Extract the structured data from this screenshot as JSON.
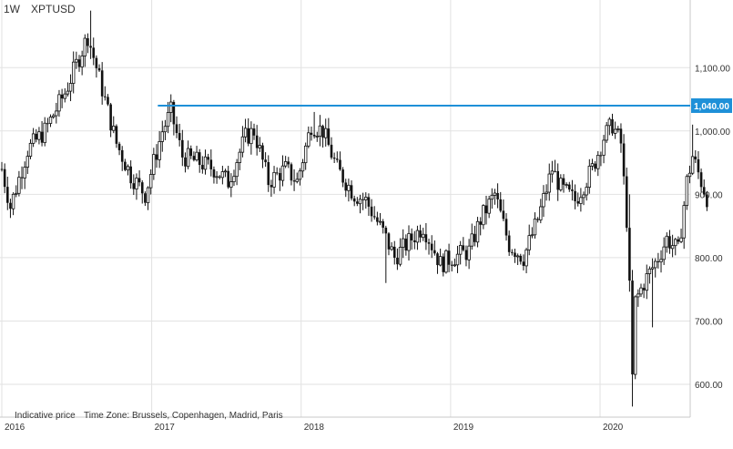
{
  "header": {
    "timeframe": "1W",
    "symbol": "XPTUSD"
  },
  "footer": {
    "indicative": "Indicative price",
    "timezone": "Time Zone: Brussels, Copenhagen, Madrid, Paris"
  },
  "colors": {
    "candle": "#111111",
    "line": "#1e90d8",
    "grid": "#e2e2e2",
    "axis_text": "#333333",
    "price_label_bg": "#1e90d8",
    "price_label_text": "#ffffff"
  },
  "chart_data": {
    "type": "candlestick",
    "title": "XPTUSD",
    "interval": "1W",
    "x_range": [
      "2016-01",
      "2020-09"
    ],
    "y_range": [
      550,
      1190
    ],
    "y_ticks": [
      {
        "value": 600,
        "label": "600.00"
      },
      {
        "value": 700,
        "label": "700.00"
      },
      {
        "value": 800,
        "label": "800.00"
      },
      {
        "value": 900,
        "label": "900.00"
      },
      {
        "value": 1000,
        "label": "1,000.00"
      },
      {
        "value": 1100,
        "label": "1,100.00"
      }
    ],
    "x_ticks": [
      {
        "date": "2016-01-01",
        "label": "2016"
      },
      {
        "date": "2017-01-01",
        "label": "2017"
      },
      {
        "date": "2018-01-01",
        "label": "2018"
      },
      {
        "date": "2019-01-01",
        "label": "2019"
      },
      {
        "date": "2020-01-01",
        "label": "2020"
      }
    ],
    "grid": true,
    "price_label": {
      "value": 1040,
      "label": "1,040.00"
    },
    "horizontal_line": {
      "value": 1040,
      "from": "2017-01-16",
      "to": "2020-09-18"
    },
    "close_path": [
      [
        "2016-01-01",
        940
      ],
      [
        "2016-01-22",
        880
      ],
      [
        "2016-03-04",
        970
      ],
      [
        "2016-04-15",
        1000
      ],
      [
        "2016-06-03",
        1060
      ],
      [
        "2016-07-29",
        1150
      ],
      [
        "2016-08-19",
        1100
      ],
      [
        "2016-10-07",
        980
      ],
      [
        "2016-11-11",
        930
      ],
      [
        "2016-12-16",
        900
      ],
      [
        "2017-01-27",
        1000
      ],
      [
        "2017-02-17",
        1030
      ],
      [
        "2017-03-17",
        960
      ],
      [
        "2017-04-28",
        950
      ],
      [
        "2017-06-02",
        940
      ],
      [
        "2017-07-07",
        920
      ],
      [
        "2017-08-18",
        990
      ],
      [
        "2017-09-08",
        1000
      ],
      [
        "2017-10-13",
        920
      ],
      [
        "2017-11-24",
        940
      ],
      [
        "2017-12-22",
        920
      ],
      [
        "2018-01-26",
        1010
      ],
      [
        "2018-02-23",
        1000
      ],
      [
        "2018-03-30",
        940
      ],
      [
        "2018-05-11",
        900
      ],
      [
        "2018-06-08",
        890
      ],
      [
        "2018-07-20",
        840
      ],
      [
        "2018-08-17",
        800
      ],
      [
        "2018-09-14",
        820
      ],
      [
        "2018-10-26",
        850
      ],
      [
        "2018-12-07",
        790
      ],
      [
        "2019-01-04",
        800
      ],
      [
        "2019-02-15",
        810
      ],
      [
        "2019-03-15",
        860
      ],
      [
        "2019-04-19",
        900
      ],
      [
        "2019-05-24",
        820
      ],
      [
        "2019-06-28",
        800
      ],
      [
        "2019-08-02",
        860
      ],
      [
        "2019-09-06",
        940
      ],
      [
        "2019-09-27",
        910
      ],
      [
        "2019-11-01",
        890
      ],
      [
        "2019-12-13",
        940
      ],
      [
        "2020-01-10",
        990
      ],
      [
        "2020-01-31",
        1010
      ],
      [
        "2020-02-21",
        980
      ],
      [
        "2020-03-06",
        860
      ],
      [
        "2020-03-13",
        750
      ],
      [
        "2020-03-20",
        610
      ],
      [
        "2020-03-27",
        730
      ],
      [
        "2020-04-17",
        760
      ],
      [
        "2020-05-22",
        800
      ],
      [
        "2020-06-12",
        830
      ],
      [
        "2020-07-10",
        810
      ],
      [
        "2020-07-31",
        920
      ],
      [
        "2020-08-14",
        960
      ],
      [
        "2020-09-04",
        920
      ],
      [
        "2020-09-18",
        895
      ]
    ],
    "events": [
      {
        "date": "2016-08-05",
        "high": 1190
      },
      {
        "date": "2017-08-25",
        "high": 1020
      },
      {
        "date": "2018-02-02",
        "high": 1030
      },
      {
        "date": "2018-07-27",
        "low": 760
      },
      {
        "date": "2020-03-13",
        "high": 900
      },
      {
        "date": "2020-03-20",
        "low": 565
      },
      {
        "date": "2020-05-08",
        "low": 690
      },
      {
        "date": "2020-08-14",
        "high": 1010
      }
    ]
  }
}
